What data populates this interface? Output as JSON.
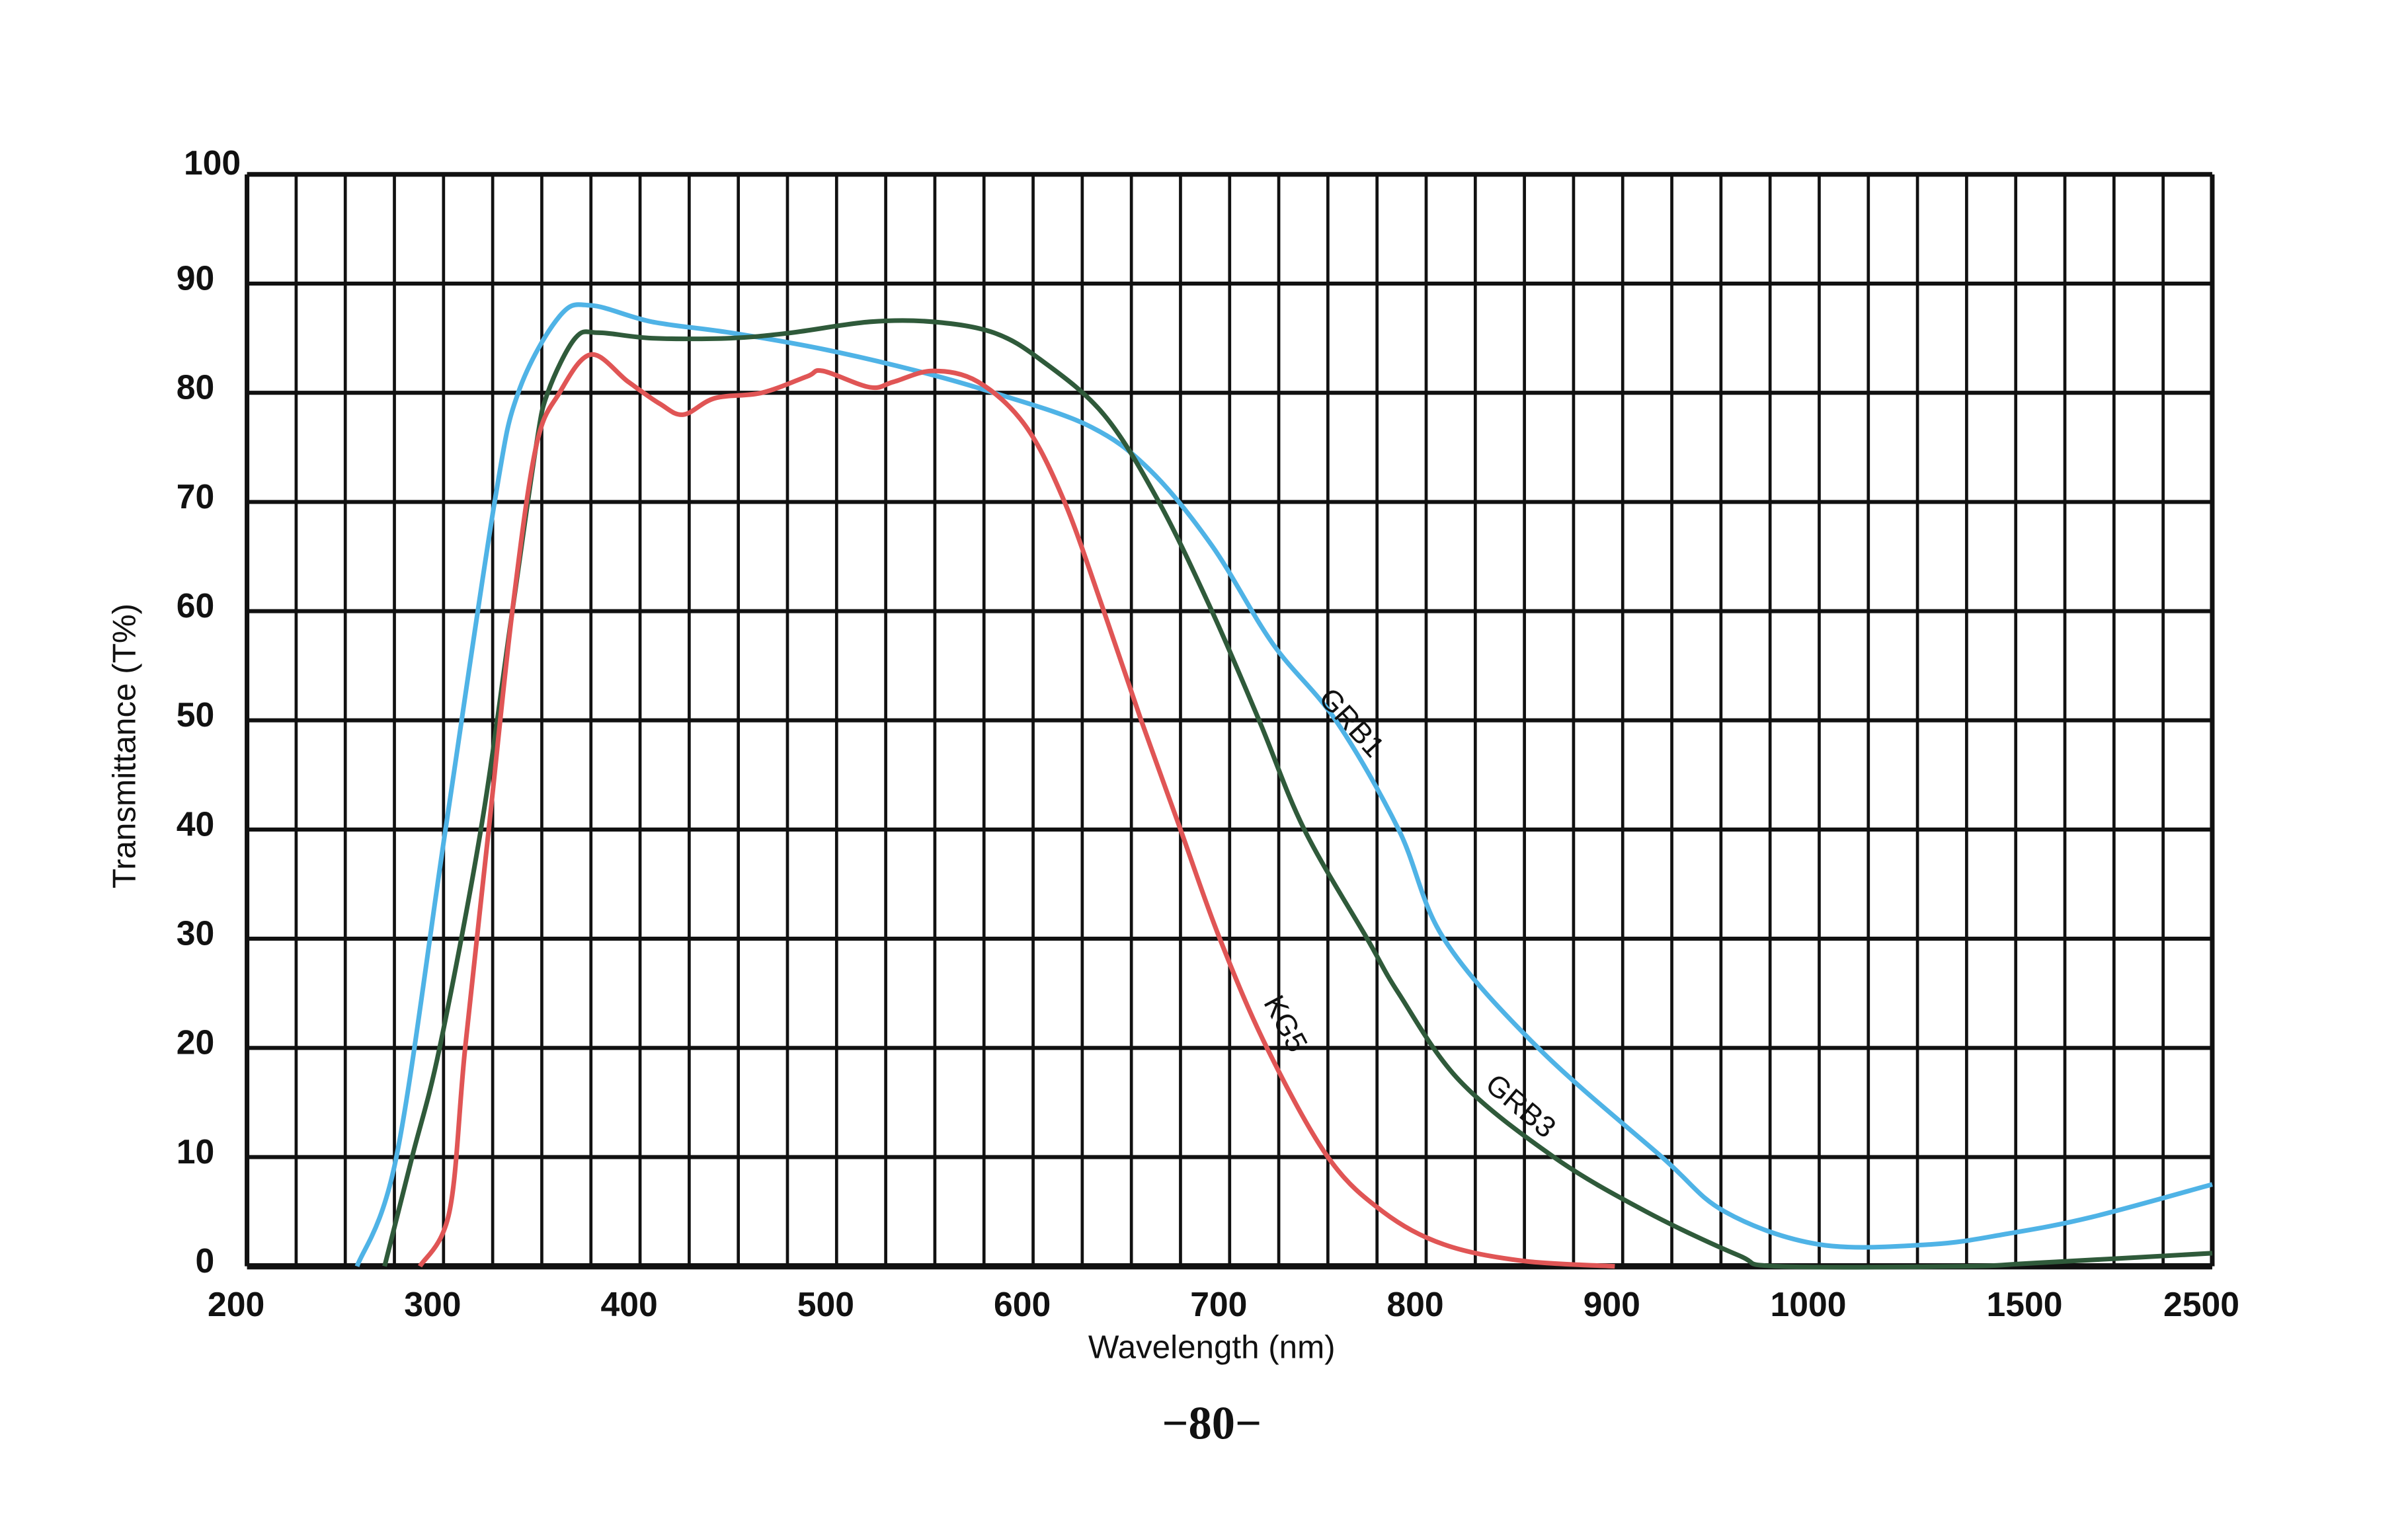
{
  "chart_data": {
    "type": "line",
    "title": "",
    "xlabel": "Wavelength (nm)",
    "ylabel": "Transmittance (T%)",
    "x_ticks": [
      "200",
      "300",
      "400",
      "500",
      "600",
      "700",
      "800",
      "900",
      "1000",
      "1500",
      "2500"
    ],
    "y_ticks": [
      "0",
      "10",
      "20",
      "30",
      "40",
      "50",
      "60",
      "70",
      "80",
      "90",
      "100"
    ],
    "xlim": [
      200,
      2500
    ],
    "ylim": [
      0,
      100
    ],
    "x_scale": "piecewise (linear 200-1000, compressed 1000-2500)",
    "grid": true,
    "series": [
      {
        "name": "GRB1",
        "color": "#4fb3e6",
        "x": [
          256,
          276,
          301,
          326,
          338,
          359,
          375,
          406,
          446,
          493,
          541,
          580,
          628,
          659,
          691,
          722,
          754,
          786,
          809,
          857,
          920,
          952,
          1000,
          1257,
          1438,
          1817,
          2500
        ],
        "y": [
          0,
          10,
          40,
          70,
          80,
          87,
          88,
          86.5,
          85.5,
          84,
          82,
          80,
          77,
          73,
          66,
          57,
          50,
          40,
          30,
          20,
          10,
          5,
          2,
          2,
          3,
          4.5,
          7.5
        ]
      },
      {
        "name": "GRB3",
        "color": "#2f5a3a",
        "x": [
          270,
          284,
          298,
          319,
          335,
          347,
          353,
          367,
          379,
          406,
          446,
          477,
          517,
          549,
          580,
          604,
          636,
          664,
          691,
          715,
          738,
          770,
          786,
          817,
          865,
          912,
          959,
          979,
          1330,
          1500,
          2500
        ],
        "y": [
          0,
          10,
          20,
          40,
          60,
          75,
          80,
          85,
          85.5,
          85,
          85,
          85.5,
          86.5,
          86.5,
          85.5,
          83,
          78,
          70,
          60,
          50,
          40,
          30,
          25,
          17,
          10,
          5,
          1,
          0,
          0,
          0.3,
          1.2
        ]
      },
      {
        "name": "KG5",
        "color": "#e05555",
        "x": [
          288,
          303,
          311,
          323,
          335,
          347,
          359,
          375,
          394,
          410,
          422,
          438,
          462,
          485,
          493,
          517,
          529,
          549,
          572,
          596,
          616,
          636,
          655,
          675,
          695,
          719,
          750,
          778,
          809,
          849,
          896
        ],
        "y": [
          0,
          5,
          20,
          40,
          60,
          75,
          80,
          83.5,
          81,
          79,
          78,
          79.5,
          80,
          81.5,
          82,
          80.5,
          81,
          82,
          81,
          77,
          70,
          60,
          50,
          40,
          30,
          20,
          10,
          5,
          2,
          0.5,
          0
        ]
      }
    ]
  },
  "page_number": "−80−"
}
